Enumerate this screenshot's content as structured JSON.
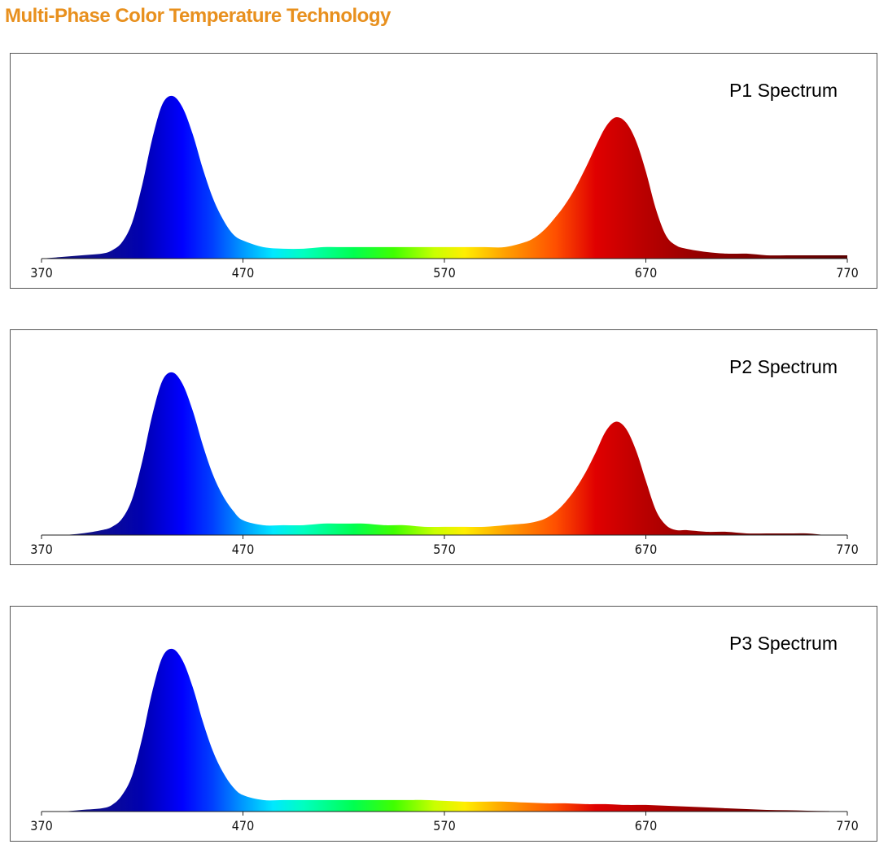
{
  "page": {
    "title": "Multi-Phase Color Temperature Technology",
    "title_color": "#e8901e"
  },
  "chart_data": [
    {
      "type": "area",
      "title": "P1 Spectrum",
      "xlim": [
        370,
        770
      ],
      "ylim": [
        0,
        1
      ],
      "xticks": [
        "370",
        "470",
        "570",
        "670",
        "770"
      ],
      "xlabel": "",
      "ylabel": "",
      "grid": false,
      "fill": "wavelength-gradient",
      "x": [
        370,
        380,
        390,
        400,
        405,
        410,
        415,
        420,
        425,
        430,
        435,
        440,
        445,
        450,
        455,
        460,
        465,
        470,
        480,
        490,
        500,
        510,
        520,
        530,
        540,
        550,
        560,
        570,
        580,
        590,
        600,
        610,
        615,
        620,
        625,
        630,
        635,
        640,
        645,
        650,
        655,
        660,
        665,
        670,
        675,
        680,
        685,
        690,
        700,
        710,
        720,
        730,
        740,
        750,
        760,
        770
      ],
      "y": [
        0.0,
        0.01,
        0.02,
        0.03,
        0.05,
        0.1,
        0.22,
        0.45,
        0.73,
        0.94,
        0.99,
        0.92,
        0.76,
        0.55,
        0.37,
        0.24,
        0.15,
        0.11,
        0.07,
        0.06,
        0.06,
        0.07,
        0.07,
        0.07,
        0.07,
        0.07,
        0.07,
        0.07,
        0.07,
        0.07,
        0.07,
        0.1,
        0.13,
        0.18,
        0.25,
        0.33,
        0.43,
        0.55,
        0.68,
        0.8,
        0.86,
        0.83,
        0.72,
        0.53,
        0.3,
        0.14,
        0.08,
        0.06,
        0.04,
        0.03,
        0.03,
        0.02,
        0.02,
        0.02,
        0.02,
        0.02
      ]
    },
    {
      "type": "area",
      "title": "P2 Spectrum",
      "xlim": [
        370,
        770
      ],
      "ylim": [
        0,
        1
      ],
      "xticks": [
        "370",
        "470",
        "570",
        "670",
        "770"
      ],
      "xlabel": "",
      "ylabel": "",
      "grid": false,
      "fill": "wavelength-gradient",
      "x": [
        370,
        380,
        390,
        400,
        405,
        410,
        415,
        420,
        425,
        430,
        435,
        440,
        445,
        450,
        455,
        460,
        465,
        470,
        480,
        490,
        500,
        510,
        520,
        530,
        540,
        550,
        560,
        570,
        580,
        590,
        600,
        610,
        615,
        620,
        625,
        630,
        635,
        640,
        645,
        650,
        655,
        660,
        665,
        670,
        675,
        680,
        685,
        690,
        700,
        710,
        720,
        730,
        740,
        750,
        760,
        770
      ],
      "y": [
        0.0,
        0.0,
        0.01,
        0.03,
        0.05,
        0.1,
        0.22,
        0.45,
        0.73,
        0.94,
        0.99,
        0.92,
        0.76,
        0.55,
        0.37,
        0.24,
        0.15,
        0.09,
        0.06,
        0.06,
        0.06,
        0.07,
        0.07,
        0.07,
        0.06,
        0.06,
        0.05,
        0.05,
        0.05,
        0.05,
        0.06,
        0.07,
        0.08,
        0.1,
        0.14,
        0.2,
        0.28,
        0.38,
        0.5,
        0.63,
        0.69,
        0.65,
        0.52,
        0.33,
        0.15,
        0.06,
        0.03,
        0.03,
        0.02,
        0.02,
        0.01,
        0.01,
        0.01,
        0.01,
        0.0,
        0.0
      ]
    },
    {
      "type": "area",
      "title": "P3 Spectrum",
      "xlim": [
        370,
        770
      ],
      "ylim": [
        0,
        1
      ],
      "xticks": [
        "370",
        "470",
        "570",
        "670",
        "770"
      ],
      "xlabel": "",
      "ylabel": "",
      "grid": false,
      "fill": "wavelength-gradient",
      "x": [
        370,
        380,
        390,
        400,
        405,
        410,
        415,
        420,
        425,
        430,
        435,
        440,
        445,
        450,
        455,
        460,
        465,
        470,
        480,
        490,
        500,
        510,
        520,
        530,
        540,
        550,
        560,
        570,
        580,
        590,
        600,
        610,
        620,
        630,
        640,
        650,
        660,
        670,
        680,
        690,
        700,
        710,
        720,
        730,
        740,
        750,
        760,
        770
      ],
      "y": [
        0.0,
        0.0,
        0.01,
        0.02,
        0.04,
        0.1,
        0.22,
        0.45,
        0.73,
        0.94,
        0.99,
        0.92,
        0.76,
        0.55,
        0.37,
        0.24,
        0.15,
        0.1,
        0.07,
        0.07,
        0.07,
        0.07,
        0.07,
        0.07,
        0.07,
        0.07,
        0.07,
        0.065,
        0.06,
        0.06,
        0.06,
        0.055,
        0.05,
        0.05,
        0.045,
        0.045,
        0.04,
        0.04,
        0.035,
        0.03,
        0.025,
        0.02,
        0.015,
        0.01,
        0.008,
        0.005,
        0.003,
        0.0
      ]
    }
  ]
}
